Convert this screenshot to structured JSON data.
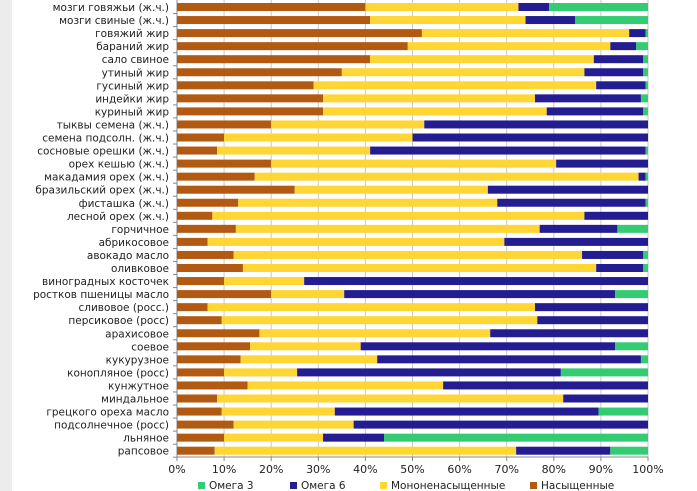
{
  "chart_data": {
    "type": "bar",
    "orientation": "horizontal",
    "stacked": "percent",
    "title": "",
    "xlabel": "",
    "ylabel": "",
    "xlim": [
      0,
      100
    ],
    "x_ticks": [
      "0%",
      "10%",
      "20%",
      "30%",
      "40%",
      "50%",
      "60%",
      "70%",
      "80%",
      "90%",
      "100%"
    ],
    "grid": true,
    "legend_position": "bottom",
    "categories": [
      "мозги говяжьи (ж.ч.)",
      "мозги свиные (ж.ч.)",
      "говяжий жир",
      "бараний жир",
      "сало свиное",
      "утиный жир",
      "гусиный жир",
      "индейки жир",
      "куриный жир",
      "тыквы семена (ж.ч.)",
      "семена подсолн. (ж.ч.)",
      "сосновые орешки (ж.ч.)",
      "орех кешью (ж.ч.)",
      "макадамия орех (ж.ч.)",
      "бразильский орех (ж.ч.)",
      "фисташка (ж.ч.)",
      "лесной орех (ж.ч.)",
      "горчичное",
      "абрикосовое",
      "авокадо масло",
      "оливковое",
      "виноградных косточек",
      "ростков пшеницы масло",
      "сливовое (росс.)",
      "персиковое (росс)",
      "арахисовое",
      "соевое",
      "кукурузное",
      "конопляное (росс)",
      "кунжутное",
      "миндальное",
      "грецкого ореха масло",
      "подсолнечное (росс)",
      "льняное",
      "рапсовое"
    ],
    "series": [
      {
        "name": "Насыщенные",
        "color": "#b25a12",
        "values": [
          40,
          41,
          52,
          49,
          41,
          35,
          29,
          31,
          31,
          20,
          10,
          8.5,
          20,
          16.5,
          25,
          13,
          7.5,
          12.5,
          6.5,
          12,
          14,
          10,
          20,
          6.5,
          9.5,
          17.5,
          15.5,
          13.5,
          10,
          15,
          8.5,
          9.5,
          12,
          10,
          8
        ]
      },
      {
        "name": "Мононенасыщенные",
        "color": "#ffd633",
        "values": [
          32.5,
          33,
          44,
          43,
          47.5,
          51.5,
          60,
          45,
          47.5,
          32.5,
          40,
          32.5,
          60.5,
          81.5,
          41,
          55,
          79,
          64.5,
          63,
          74,
          75,
          17,
          15.5,
          69.5,
          67,
          49,
          23.5,
          29,
          15.5,
          41.5,
          73.5,
          24,
          25.5,
          21,
          64
        ]
      },
      {
        "name": "Омега 6",
        "color": "#241d91",
        "values": [
          6.5,
          10.5,
          3.5,
          5.5,
          10.5,
          12.5,
          10.5,
          22.5,
          20.5,
          47.5,
          50,
          58.5,
          19.5,
          1.5,
          34,
          31.5,
          13.5,
          16.5,
          30.5,
          13,
          10,
          73,
          57.5,
          24,
          23.5,
          33.5,
          54,
          56,
          56,
          43.5,
          18,
          56,
          62.5,
          13,
          20
        ]
      },
      {
        "name": "Омега 3",
        "color": "#33cc73",
        "values": [
          21,
          15.5,
          0.5,
          2.5,
          1,
          1,
          0.5,
          1.5,
          1,
          0,
          0,
          0.5,
          0,
          0.5,
          0,
          0.5,
          0,
          6.5,
          0,
          1,
          1,
          0,
          7,
          0,
          0,
          0,
          7,
          1.5,
          18.5,
          0,
          0,
          10.5,
          0,
          56,
          8
        ]
      }
    ]
  }
}
